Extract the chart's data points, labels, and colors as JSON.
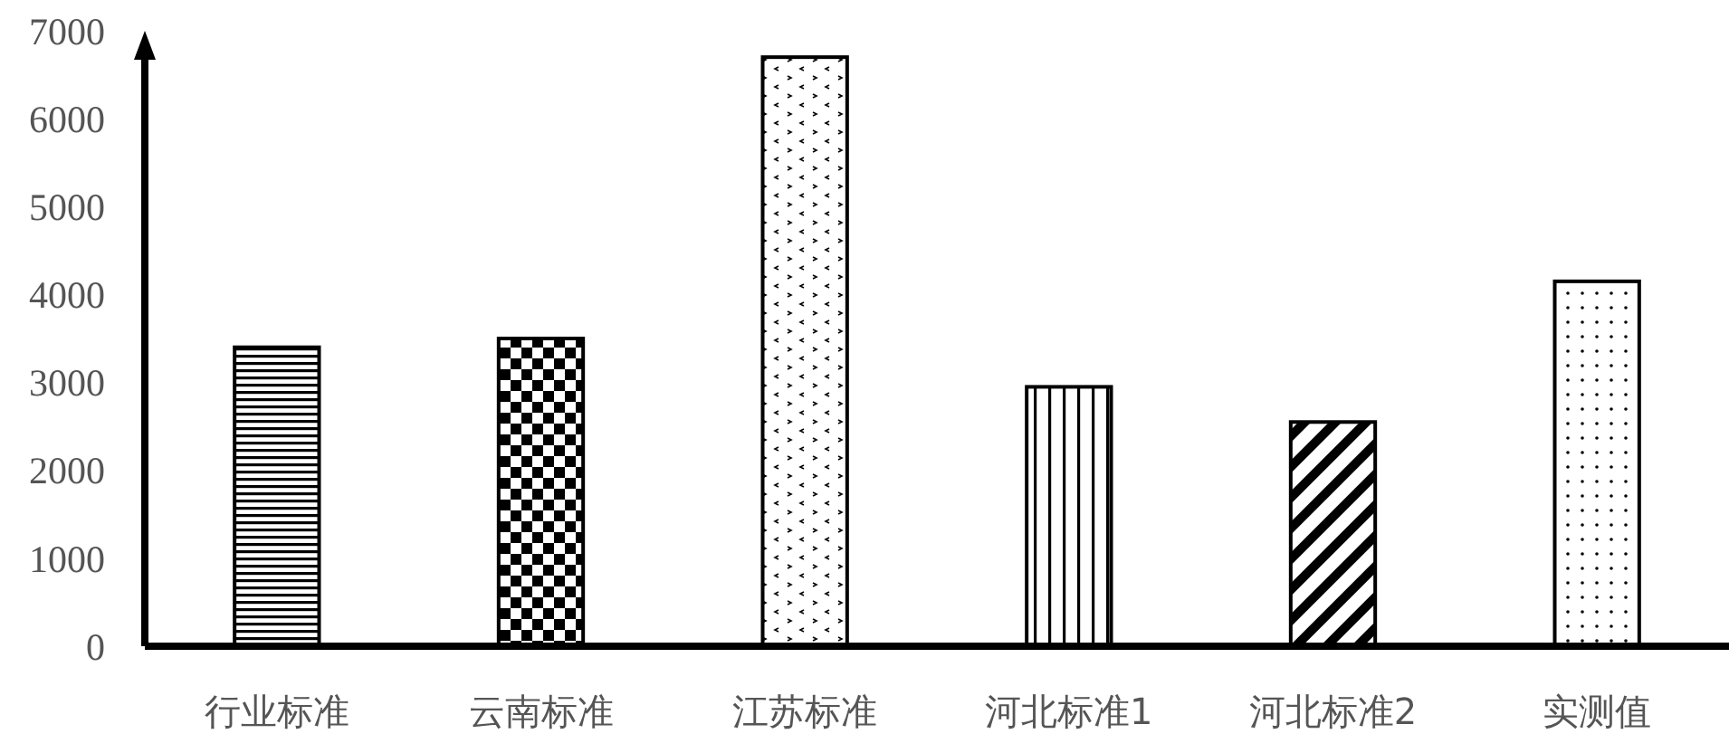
{
  "chart_data": {
    "type": "bar",
    "categories": [
      "行业标准",
      "云南标准",
      "江苏标准",
      "河北标准1",
      "河北标准2",
      "实测值"
    ],
    "values": [
      3400,
      3500,
      6700,
      2950,
      2550,
      4150
    ],
    "colors": [
      "#000000",
      "#000000",
      "#000000",
      "#000000",
      "#000000",
      "#000000"
    ],
    "ylim": [
      0,
      7000
    ],
    "yticks": [
      0,
      1000,
      2000,
      3000,
      4000,
      5000,
      6000,
      7000
    ],
    "grid": false
  }
}
